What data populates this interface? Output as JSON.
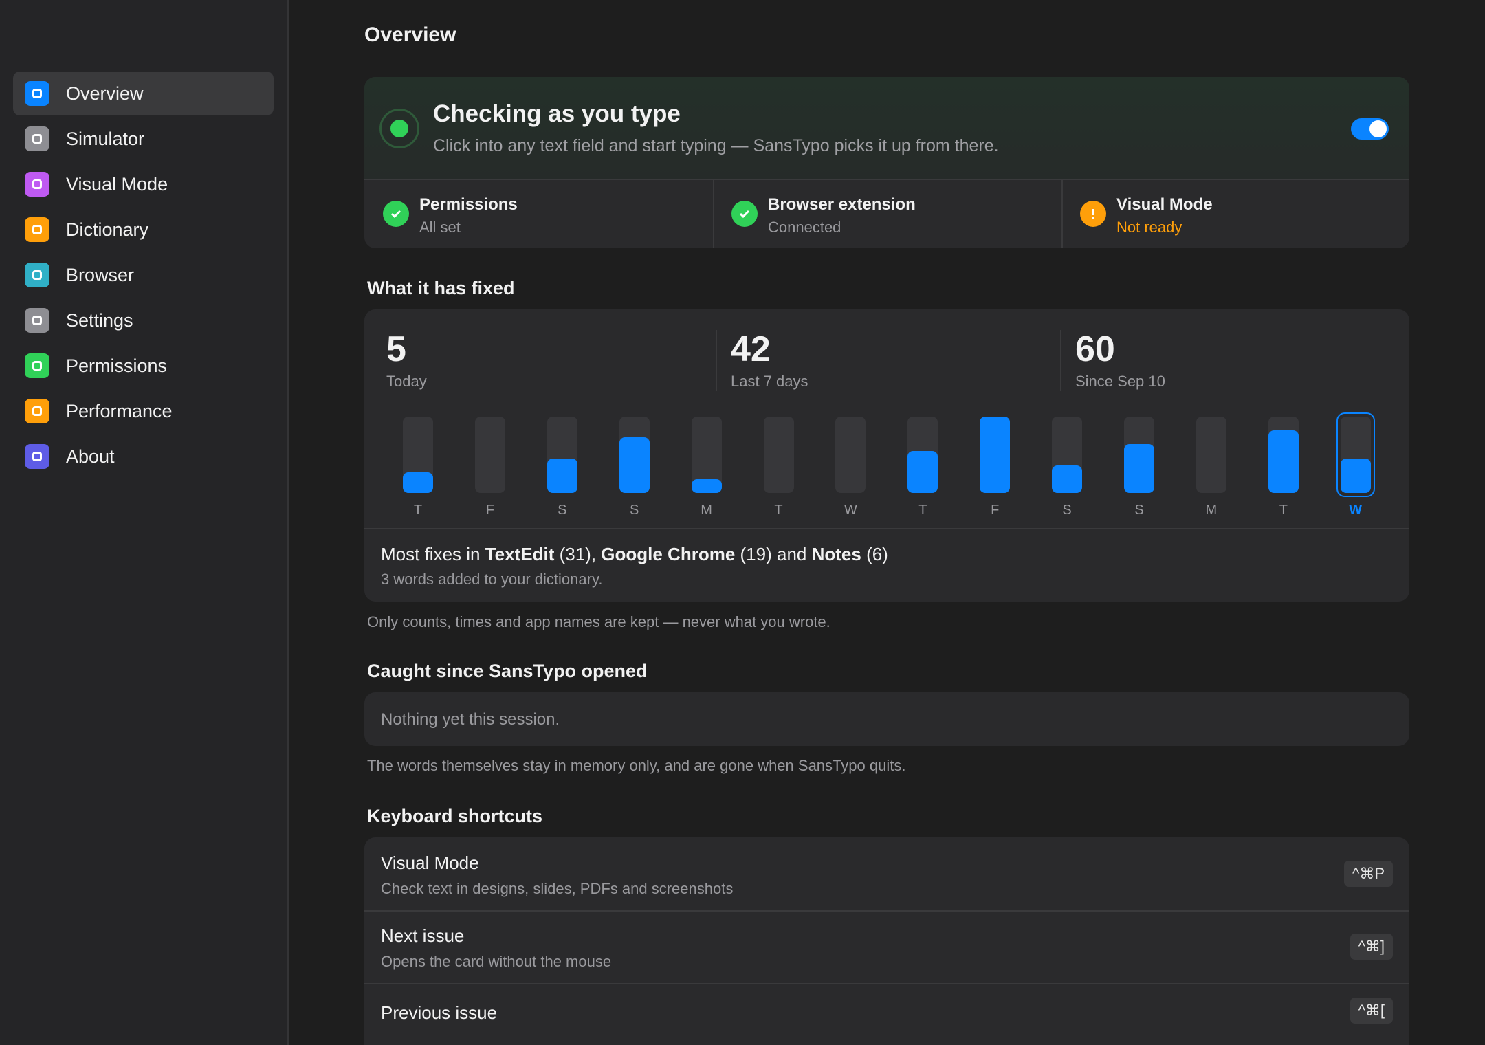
{
  "sidebar": {
    "items": [
      {
        "label": "Overview",
        "color": "#0a84ff",
        "active": true
      },
      {
        "label": "Simulator",
        "color": "#8e8e93"
      },
      {
        "label": "Visual Mode",
        "color": "#bf5af2"
      },
      {
        "label": "Dictionary",
        "color": "#ff9f0a"
      },
      {
        "label": "Browser",
        "color": "#30b0c7"
      },
      {
        "label": "Settings",
        "color": "#8e8e93"
      },
      {
        "label": "Permissions",
        "color": "#30d158"
      },
      {
        "label": "Performance",
        "color": "#ff9f0a"
      },
      {
        "label": "About",
        "color": "#5e5ce6"
      }
    ]
  },
  "page_title": "Overview",
  "status": {
    "title": "Checking as you type",
    "subtitle": "Click into any text field and start typing — SansTypo picks it up from there.",
    "enabled": true,
    "checks": [
      {
        "label": "Permissions",
        "status": "All set",
        "state": "ok"
      },
      {
        "label": "Browser extension",
        "status": "Connected",
        "state": "ok"
      },
      {
        "label": "Visual Mode",
        "status": "Not ready",
        "state": "warn"
      }
    ]
  },
  "fixed": {
    "heading": "What it has fixed",
    "stats": [
      {
        "value": 5,
        "label": "Today"
      },
      {
        "value": 42,
        "label": "Last 7 days"
      },
      {
        "value": 60,
        "label": "Since Sep 10"
      }
    ],
    "summary_parts": [
      {
        "text": "Most fixes in "
      },
      {
        "text": "TextEdit",
        "bold": true
      },
      {
        "text": " (31), "
      },
      {
        "text": "Google Chrome",
        "bold": true
      },
      {
        "text": " (19) and "
      },
      {
        "text": "Notes",
        "bold": true
      },
      {
        "text": " (6)"
      }
    ],
    "summary_note": "3 words added to your dictionary.",
    "note": "Only counts, times and app names are kept — never what you wrote."
  },
  "chart_data": {
    "type": "bar",
    "categories": [
      "T",
      "F",
      "S",
      "S",
      "M",
      "T",
      "W",
      "T",
      "F",
      "S",
      "S",
      "M",
      "T",
      "W"
    ],
    "values": [
      3,
      0,
      5,
      8,
      2,
      0,
      0,
      6,
      11,
      4,
      7,
      0,
      9,
      5
    ],
    "ylim": [
      0,
      11
    ],
    "color": "#0a84ff",
    "highlight": 13
  },
  "session": {
    "heading": "Caught since SansTypo opened",
    "empty": "Nothing yet this session.",
    "note": "The words themselves stay in memory only, and are gone when SansTypo quits."
  },
  "shortcuts": {
    "heading": "Keyboard shortcuts",
    "items": [
      {
        "title": "Visual Mode",
        "description": "Check text in designs, slides, PDFs and screenshots",
        "keys": "^⌘P"
      },
      {
        "title": "Next issue",
        "description": "Opens the card without the mouse",
        "keys": "^⌘]"
      },
      {
        "title": "Previous issue",
        "keys": "^⌘["
      }
    ]
  }
}
